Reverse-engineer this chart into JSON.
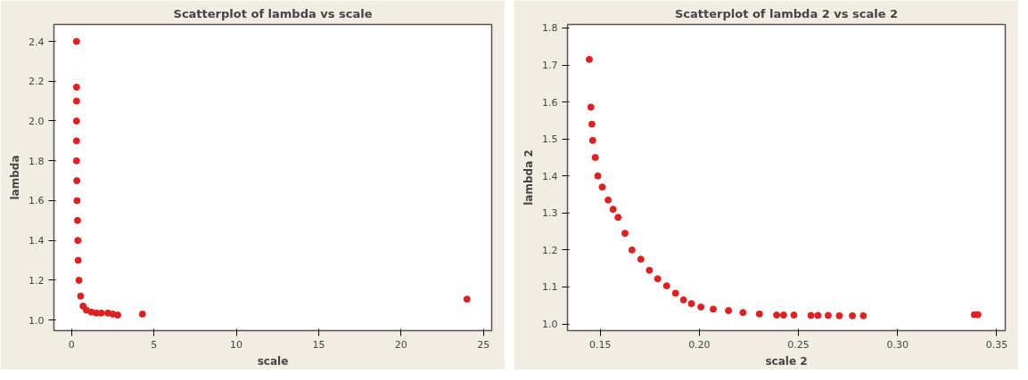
{
  "chart_data": [
    {
      "type": "scatter",
      "title": "Scatterplot of lambda vs scale",
      "xlabel": "scale",
      "ylabel": "lambda",
      "marker": "circle",
      "grid": false,
      "xlim": [
        -1.07,
        25.5
      ],
      "ylim": [
        0.947,
        2.485
      ],
      "xticks": [
        0,
        5,
        10,
        15,
        20,
        25
      ],
      "yticks": [
        {
          "value": 1.0,
          "label": "1.0"
        },
        {
          "value": 1.2,
          "label": "1.2"
        },
        {
          "value": 1.4,
          "label": "1.4"
        },
        {
          "value": 1.6,
          "label": "1.6"
        },
        {
          "value": 1.8,
          "label": "1.8"
        },
        {
          "value": 2.0,
          "label": "2.0"
        },
        {
          "value": 2.2,
          "label": "2.2"
        },
        {
          "value": 2.4,
          "label": "2.4"
        }
      ],
      "series": [
        {
          "color": "#e02020",
          "x": [
            0.3,
            0.3,
            0.3,
            0.3,
            0.3,
            0.3,
            0.32,
            0.33,
            0.36,
            0.38,
            0.4,
            0.45,
            0.55,
            0.7,
            0.9,
            1.2,
            1.5,
            1.8,
            2.2,
            2.5,
            2.8,
            4.3,
            24.0
          ],
          "values": [
            2.4,
            2.17,
            2.1,
            2.0,
            1.9,
            1.8,
            1.7,
            1.6,
            1.5,
            1.4,
            1.3,
            1.2,
            1.12,
            1.07,
            1.05,
            1.04,
            1.035,
            1.035,
            1.035,
            1.03,
            1.025,
            1.03,
            1.105
          ]
        }
      ]
    },
    {
      "type": "scatter",
      "title": "Scatterplot of lambda 2 vs scale 2",
      "xlabel": "scale 2",
      "ylabel": "lambda 2",
      "marker": "circle",
      "grid": false,
      "xlim": [
        0.1335,
        0.3543
      ],
      "ylim": [
        0.982,
        1.8095
      ],
      "xticks": [
        {
          "value": 0.15,
          "label": "0.15"
        },
        {
          "value": 0.2,
          "label": "0.20"
        },
        {
          "value": 0.25,
          "label": "0.25"
        },
        {
          "value": 0.3,
          "label": "0.30"
        },
        {
          "value": 0.35,
          "label": "0.35"
        }
      ],
      "yticks": [
        {
          "value": 1.0,
          "label": "1.0"
        },
        {
          "value": 1.1,
          "label": "1.1"
        },
        {
          "value": 1.2,
          "label": "1.2"
        },
        {
          "value": 1.3,
          "label": "1.3"
        },
        {
          "value": 1.4,
          "label": "1.4"
        },
        {
          "value": 1.5,
          "label": "1.5"
        },
        {
          "value": 1.6,
          "label": "1.6"
        },
        {
          "value": 1.7,
          "label": "1.7"
        },
        {
          "value": 1.8,
          "label": "1.8"
        }
      ],
      "series": [
        {
          "color": "#e02020",
          "x": [
            0.1445,
            0.1453,
            0.1458,
            0.1462,
            0.1475,
            0.1488,
            0.151,
            0.154,
            0.1565,
            0.159,
            0.1625,
            0.166,
            0.1705,
            0.1748,
            0.179,
            0.1835,
            0.188,
            0.192,
            0.196,
            0.2008,
            0.207,
            0.2147,
            0.222,
            0.2303,
            0.239,
            0.2425,
            0.2477,
            0.2563,
            0.2598,
            0.265,
            0.2706,
            0.2772,
            0.2827,
            0.3387,
            0.3405
          ],
          "values": [
            1.715,
            1.586,
            1.54,
            1.496,
            1.45,
            1.4,
            1.37,
            1.335,
            1.31,
            1.288,
            1.245,
            1.2,
            1.175,
            1.145,
            1.122,
            1.103,
            1.083,
            1.065,
            1.055,
            1.046,
            1.04,
            1.036,
            1.031,
            1.027,
            1.024,
            1.024,
            1.024,
            1.023,
            1.023,
            1.023,
            1.022,
            1.022,
            1.022,
            1.025,
            1.025
          ]
        }
      ]
    }
  ]
}
